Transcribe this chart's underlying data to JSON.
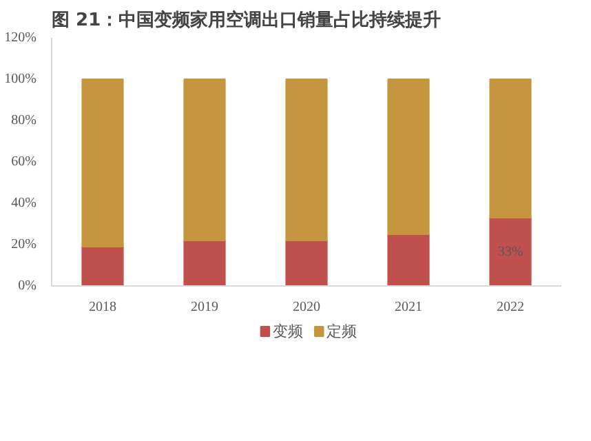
{
  "chart_data": {
    "type": "bar",
    "title": "图 21：中国变频家用空调出口销量占比持续提升",
    "categories": [
      "2018",
      "2019",
      "2020",
      "2021",
      "2022"
    ],
    "stacked": true,
    "series": [
      {
        "name": "变频",
        "color": "#c0504d",
        "values": [
          19,
          22,
          22,
          25,
          33
        ],
        "value_labels": [
          null,
          null,
          null,
          null,
          "33%"
        ]
      },
      {
        "name": "定频",
        "color": "#c5953f",
        "values": [
          81,
          78,
          78,
          75,
          67
        ]
      }
    ],
    "ylim": [
      0,
      120
    ],
    "yticks": [
      {
        "value": 0,
        "label": "0%"
      },
      {
        "value": 20,
        "label": "20%"
      },
      {
        "value": 40,
        "label": "40%"
      },
      {
        "value": 60,
        "label": "60%"
      },
      {
        "value": 80,
        "label": "80%"
      },
      {
        "value": 100,
        "label": "100%"
      },
      {
        "value": 120,
        "label": "120%"
      }
    ],
    "grid": false,
    "legend": "bottom"
  }
}
